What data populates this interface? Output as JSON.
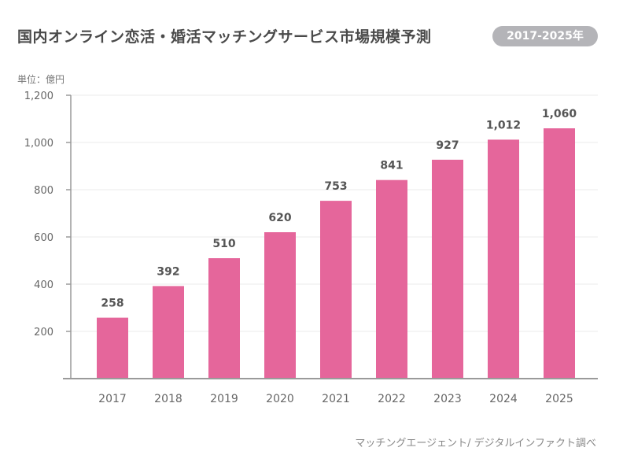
{
  "chart_data": {
    "type": "bar",
    "title": "国内オンライン恋活・婚活マッチングサービス市場規模予測",
    "subtitle": "2017-2025年",
    "ylabel": "単位：億円",
    "source": "マッチングエージェント/ デジタルインファクト調べ",
    "categories": [
      "2017",
      "2018",
      "2019",
      "2020",
      "2021",
      "2022",
      "2023",
      "2024",
      "2025"
    ],
    "values": [
      258,
      392,
      510,
      620,
      753,
      841,
      927,
      1012,
      1060
    ],
    "value_labels": [
      "258",
      "392",
      "510",
      "620",
      "753",
      "841",
      "927",
      "1,012",
      "1,060"
    ],
    "yticks": [
      200,
      400,
      600,
      800,
      1000,
      1200
    ],
    "ytick_labels": [
      "200",
      "400",
      "600",
      "800",
      "1,000",
      "1,200"
    ],
    "ylim": [
      0,
      1200
    ],
    "grid": true,
    "colors": {
      "bar": "#e5669b",
      "grid": "#ebebeb",
      "axis": "#9a9a9a"
    }
  }
}
